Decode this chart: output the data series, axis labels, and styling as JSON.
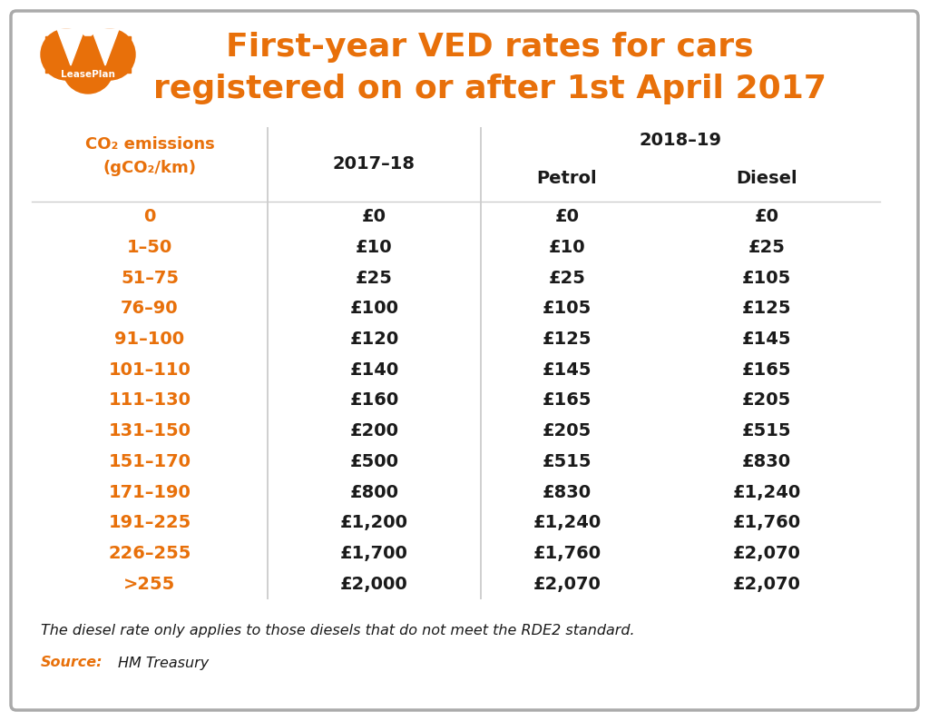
{
  "title_line1": "First-year VED rates for cars",
  "title_line2": "registered on or after 1st April 2017",
  "title_color": "#E8700A",
  "col_header_color": "#1a1a1a",
  "row_label_color": "#E8700A",
  "data_color": "#1a1a1a",
  "background_color": "#ffffff",
  "border_color": "#aaaaaa",
  "orange_color": "#E8700A",
  "row_labels": [
    "0",
    "1–50",
    "51–75",
    "76–90",
    "91–100",
    "101–110",
    "111–130",
    "131–150",
    "151–170",
    "171–190",
    "191–225",
    "226–255",
    ">255"
  ],
  "col_2017": [
    "£0",
    "£10",
    "£25",
    "£100",
    "£120",
    "£140",
    "£160",
    "£200",
    "£500",
    "£800",
    "£1,200",
    "£1,700",
    "£2,000"
  ],
  "col_petrol": [
    "£0",
    "£10",
    "£25",
    "£105",
    "£125",
    "£145",
    "£165",
    "£205",
    "£515",
    "£830",
    "£1,240",
    "£1,760",
    "£2,070"
  ],
  "col_diesel": [
    "£0",
    "£25",
    "£105",
    "£125",
    "£145",
    "£165",
    "£205",
    "£515",
    "£830",
    "£1,240",
    "£1,760",
    "£2,070",
    "£2,070"
  ],
  "footnote": "The diesel rate only applies to those diesels that do not meet the RDE2 standard.",
  "source_label": "Source:",
  "source_text": "  HM Treasury",
  "fig_width": 10.24,
  "fig_height": 7.94
}
